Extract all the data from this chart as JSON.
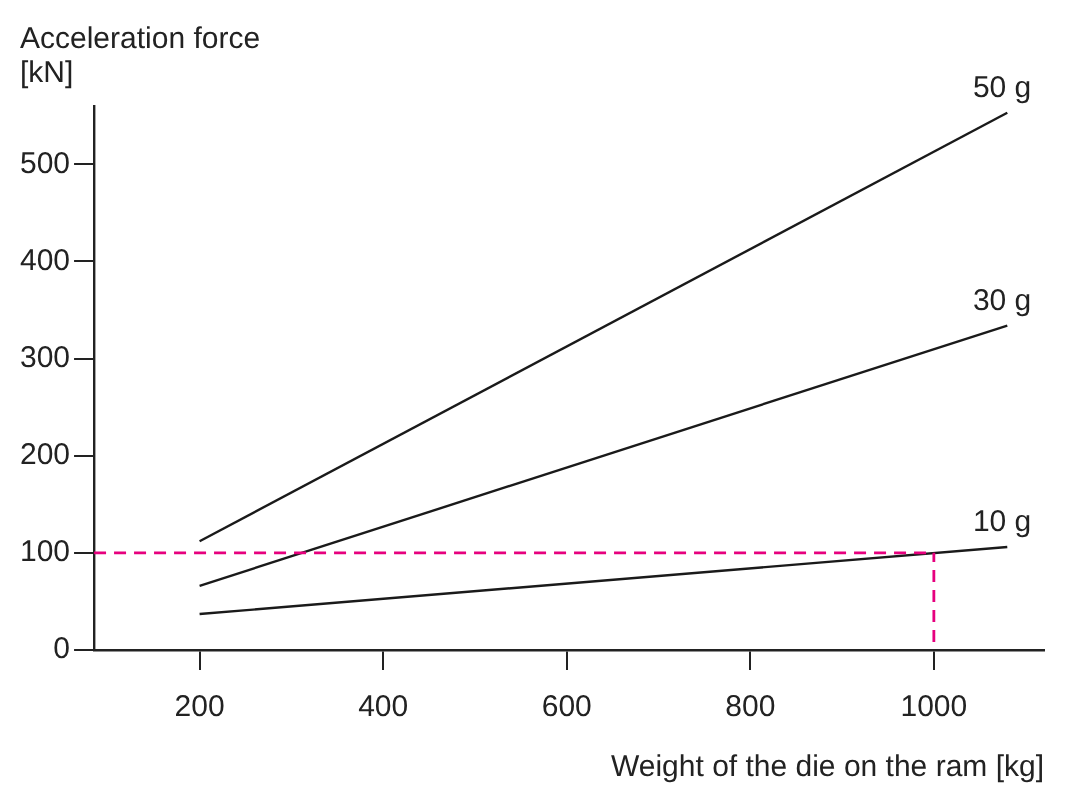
{
  "chart_data": {
    "type": "line",
    "xlabel": "Weight of the die on the ram [kg]",
    "ylabel": "Acceleration force\n[kN]",
    "x": [
      200,
      1080
    ],
    "series": [
      {
        "name": "50 g",
        "color": "#1a1a1a",
        "values": [
          112,
          553
        ]
      },
      {
        "name": "30 g",
        "color": "#1a1a1a",
        "values": [
          66,
          334
        ]
      },
      {
        "name": "10 g",
        "color": "#1a1a1a",
        "values": [
          37,
          106
        ]
      }
    ],
    "xlim": [
      85,
      1120
    ],
    "ylim": [
      0,
      560
    ],
    "xticks": [
      200,
      400,
      600,
      800,
      1000
    ],
    "yticks": [
      0,
      100,
      200,
      300,
      400,
      500
    ],
    "grid": false,
    "legend": false,
    "marker": "none",
    "line_style": "solid",
    "ref_lines": [
      {
        "axis": "y",
        "value": 100,
        "color": "#e6007e",
        "line_style": "dashed"
      },
      {
        "axis": "x",
        "value": 1000,
        "color": "#e6007e",
        "line_style": "dashed"
      }
    ]
  }
}
